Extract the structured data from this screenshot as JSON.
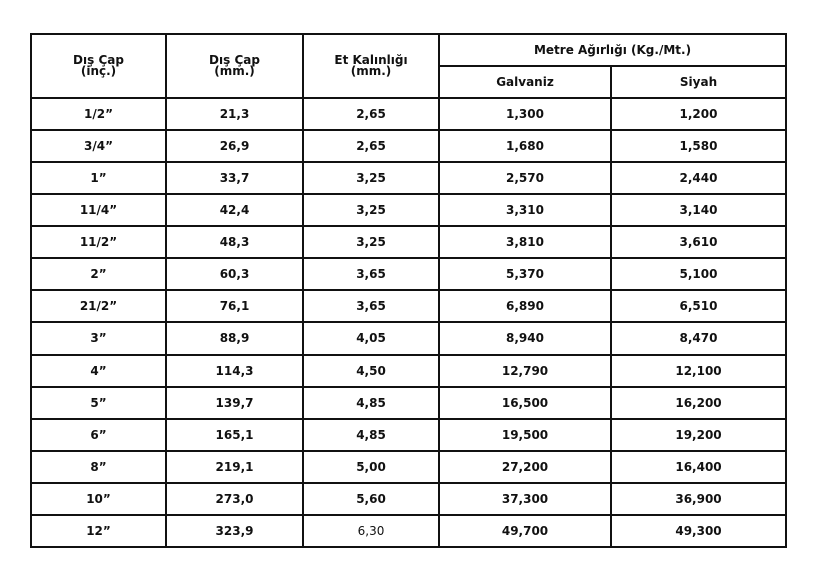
{
  "table": {
    "headers": {
      "col1": [
        "Dış Çap",
        "(inç.)"
      ],
      "col2": [
        "Dış Çap",
        "(mm.)"
      ],
      "col3": [
        "Et Kalınlığı",
        "(mm.)"
      ],
      "group": "Metre Ağırlığı (Kg./Mt.)",
      "sub1": "Galvaniz",
      "sub2": "Siyah"
    },
    "rows": [
      [
        "1/2”",
        "21,3",
        "2,65",
        "1,300",
        "1,200"
      ],
      [
        "3/4”",
        "26,9",
        "2,65",
        "1,680",
        "1,580"
      ],
      [
        "1”",
        "33,7",
        "3,25",
        "2,570",
        "2,440"
      ],
      [
        "11/4”",
        "42,4",
        "3,25",
        "3,310",
        "3,140"
      ],
      [
        "11/2”",
        "48,3",
        "3,25",
        "3,810",
        "3,610"
      ],
      [
        "2”",
        "60,3",
        "3,65",
        "5,370",
        "5,100"
      ],
      [
        "21/2”",
        "76,1",
        "3,65",
        "6,890",
        "6,510"
      ],
      [
        "3”",
        "88,9",
        "4,05",
        "8,940",
        "8,470"
      ],
      [
        "4”",
        "114,3",
        "4,50",
        "12,790",
        "12,100"
      ],
      [
        "5”",
        "139,7",
        "4,85",
        "16,500",
        "16,200"
      ],
      [
        "6”",
        "165,1",
        "4,85",
        "19,500",
        "19,200"
      ],
      [
        "8”",
        "219,1",
        "5,00",
        "27,200",
        "16,400"
      ],
      [
        "10”",
        "273,0",
        "5,60",
        "37,300",
        "36,900"
      ],
      [
        "12”",
        "323,9",
        "6,30",
        "49,700",
        "49,300"
      ]
    ]
  }
}
